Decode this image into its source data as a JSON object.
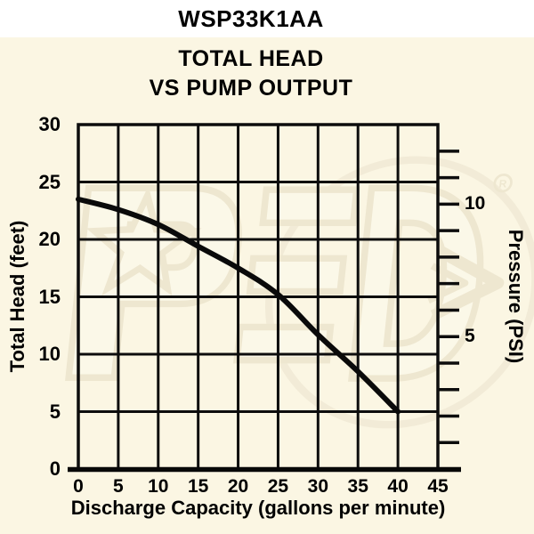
{
  "header": {
    "model": "WSP33K1AA"
  },
  "chart": {
    "title_line1": "TOTAL HEAD",
    "title_line2": "VS PUMP OUTPUT",
    "left_axis_label": "Total Head (feet)",
    "right_axis_label": "Pressure (PSI)",
    "bottom_axis_label": "Discharge Capacity (gallons per minute)"
  },
  "watermark": {
    "letters": "PED",
    "registered_mark": "R"
  },
  "chart_data": {
    "type": "line",
    "title": "TOTAL HEAD VS PUMP OUTPUT",
    "xlabel": "Discharge Capacity (gallons per minute)",
    "ylabel": "Total Head (feet)",
    "y2label": "Pressure (PSI)",
    "xlim": [
      0,
      45
    ],
    "ylim": [
      0,
      30
    ],
    "grid": true,
    "x_ticks": [
      0,
      5,
      10,
      15,
      20,
      25,
      30,
      35,
      40,
      45
    ],
    "y_ticks": [
      30,
      25,
      20,
      15,
      10,
      5,
      0
    ],
    "y2_minor_ticks_psi": [
      1,
      2,
      3,
      4,
      5,
      6,
      7,
      8,
      9,
      10,
      11,
      12
    ],
    "y2_labeled_ticks_psi": [
      10,
      5
    ],
    "y2_feet_per_psi": 2.307,
    "series": [
      {
        "name": "Total head vs discharge capacity",
        "x": [
          0,
          5,
          10,
          15,
          20,
          25,
          30,
          35,
          40
        ],
        "y": [
          23.5,
          22.6,
          21.3,
          19.4,
          17.5,
          15.2,
          11.7,
          8.5,
          5.0
        ]
      }
    ]
  }
}
